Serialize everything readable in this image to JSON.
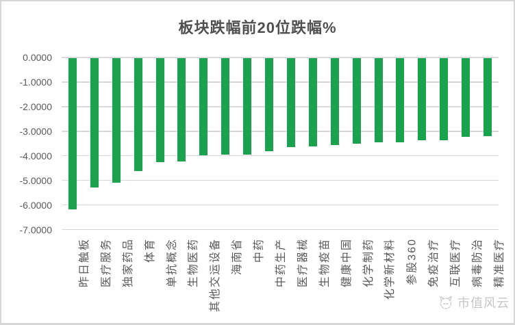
{
  "chart_data": {
    "type": "bar",
    "title": "板块跌幅前20位跌幅%",
    "categories": [
      "昨日触板",
      "医疗服务",
      "独家药品",
      "体育",
      "单抗概念",
      "生物医药",
      "其他交运设备",
      "海南省",
      "中药",
      "中药生产",
      "医疗器械",
      "生物疫苗",
      "健康中国",
      "化学制药",
      "化学新材料",
      "参股360",
      "免疫治疗",
      "互联医疗",
      "病毒防治",
      "精准医疗"
    ],
    "values": [
      -6.17,
      -5.28,
      -5.08,
      -4.62,
      -4.27,
      -4.23,
      -3.97,
      -3.96,
      -3.95,
      -3.81,
      -3.65,
      -3.63,
      -3.55,
      -3.52,
      -3.46,
      -3.44,
      -3.37,
      -3.36,
      -3.24,
      -3.21
    ],
    "xlabel": "",
    "ylabel": "",
    "ylim": [
      -7,
      0
    ],
    "y_ticks": [
      "0.0000",
      "-1.0000",
      "-2.0000",
      "-3.0000",
      "-4.0000",
      "-5.0000",
      "-6.0000",
      "-7.0000"
    ],
    "grid": true,
    "legend": "none",
    "bar_color": "#1aa24d",
    "gridline_color": "#d9d9d9",
    "axis_text_color": "#595959"
  },
  "watermark": {
    "text": "市值风云",
    "icon": "cat-logo-icon",
    "color": "#c6c6c6"
  }
}
